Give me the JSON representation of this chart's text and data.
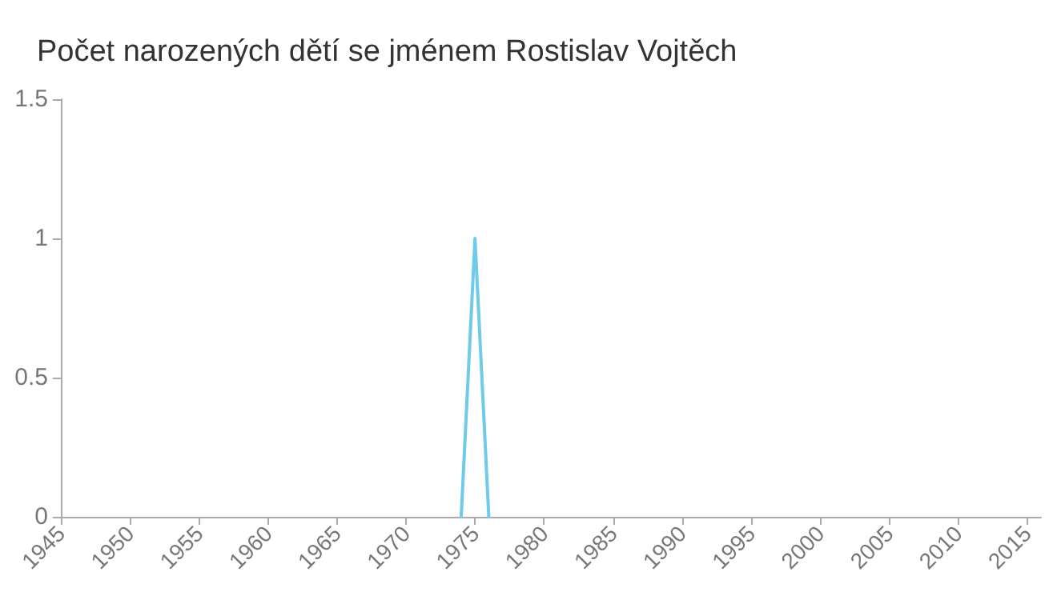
{
  "chart_data": {
    "type": "line",
    "title": "Počet narozených dětí se jménem Rostislav Vojtěch",
    "x": [
      1974,
      1975,
      1976
    ],
    "series": [
      {
        "color": "#6ecbea",
        "values": [
          0,
          1,
          0
        ]
      }
    ],
    "xlim": [
      1945,
      2016
    ],
    "xticks": [
      1945,
      1950,
      1955,
      1960,
      1965,
      1970,
      1975,
      1980,
      1985,
      1990,
      1995,
      2000,
      2005,
      2010,
      2015
    ],
    "ylim": [
      0,
      1.5
    ],
    "yticks": [
      0,
      0.5,
      1,
      1.5
    ],
    "grid": false,
    "marker": "none",
    "line_style": "solid"
  }
}
